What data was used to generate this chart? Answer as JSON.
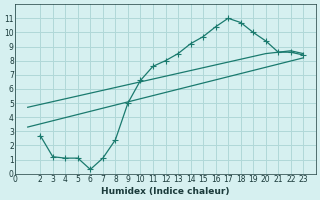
{
  "xlabel": "Humidex (Indice chaleur)",
  "ylabel": "",
  "bg_color": "#d6f0f0",
  "line_color": "#1a7a6e",
  "grid_color": "#b0d8d8",
  "xlim": [
    0,
    24
  ],
  "ylim": [
    0,
    12
  ],
  "xticks": [
    0,
    2,
    3,
    4,
    5,
    6,
    7,
    8,
    9,
    10,
    11,
    12,
    13,
    14,
    15,
    16,
    17,
    18,
    19,
    20,
    21,
    22,
    23
  ],
  "yticks": [
    0,
    1,
    2,
    3,
    4,
    5,
    6,
    7,
    8,
    9,
    10,
    11
  ],
  "line1_x": [
    1,
    2,
    3,
    4,
    5,
    6,
    7,
    8,
    9,
    10,
    11,
    12,
    13,
    14,
    15,
    16,
    17,
    18,
    19,
    20,
    21,
    22,
    23
  ],
  "line1_y": [
    4.7,
    4.9,
    5.1,
    5.3,
    5.5,
    5.7,
    5.9,
    6.1,
    6.3,
    6.5,
    6.7,
    6.9,
    7.1,
    7.3,
    7.5,
    7.7,
    7.9,
    8.1,
    8.3,
    8.5,
    8.6,
    8.7,
    8.5
  ],
  "line2_x": [
    2,
    3,
    4,
    5,
    6,
    7,
    8,
    9,
    10,
    11,
    12,
    13,
    14,
    15,
    16,
    17,
    18,
    19,
    20,
    21,
    22,
    23
  ],
  "line2_y": [
    2.7,
    1.2,
    1.1,
    1.1,
    0.3,
    1.1,
    2.4,
    5.0,
    6.6,
    7.6,
    8.0,
    8.5,
    9.2,
    9.7,
    10.4,
    11.0,
    10.7,
    10.0,
    9.4,
    8.6,
    8.6,
    8.4
  ],
  "line3_x": [
    1,
    23
  ],
  "line3_y": [
    3.3,
    8.2
  ]
}
